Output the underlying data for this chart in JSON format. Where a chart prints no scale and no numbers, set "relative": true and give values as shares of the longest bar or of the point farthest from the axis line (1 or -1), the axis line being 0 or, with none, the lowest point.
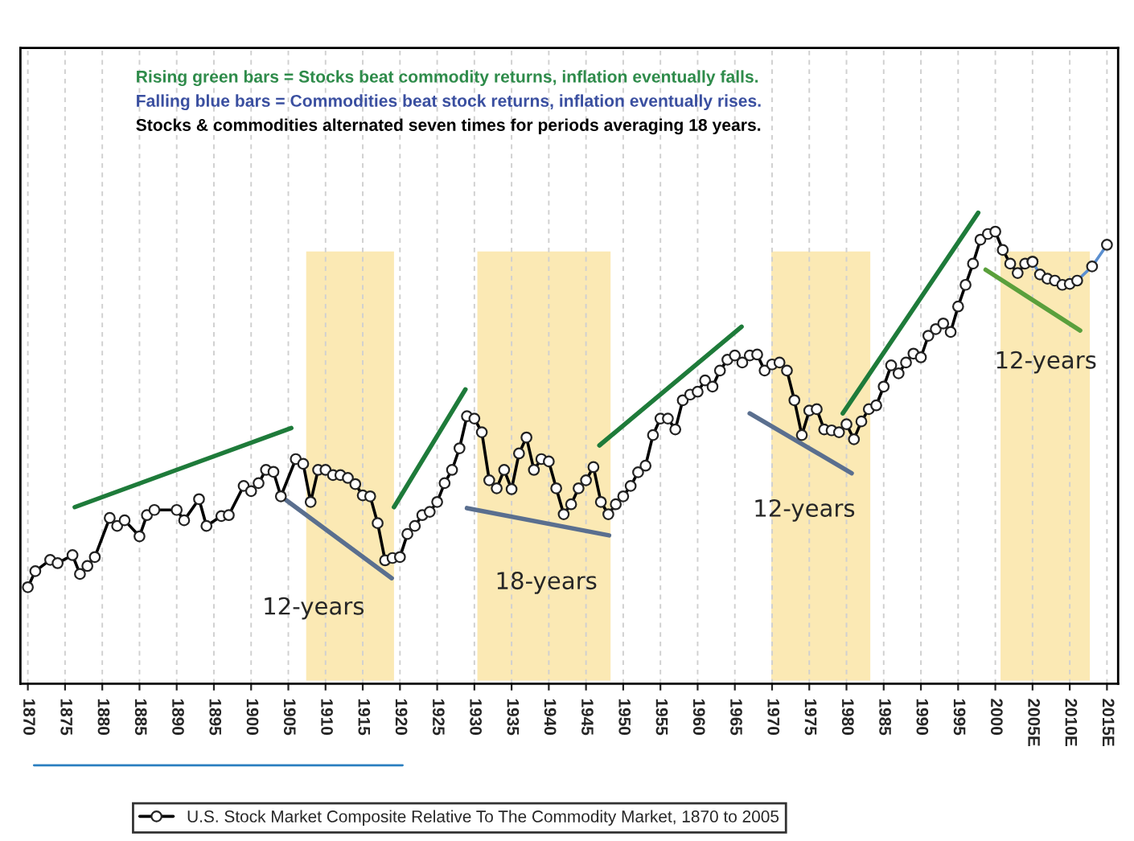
{
  "chart_data": {
    "type": "line",
    "relative": true,
    "annotations": [
      "Rising green bars = Stocks beat commodity returns, inflation eventually falls.",
      "Falling blue bars = Commodities beat stock returns, inflation eventually rises.",
      "Stocks & commodities alternated seven times for periods averaging 18 years.",
      "12-years",
      "18-years",
      "12-years",
      "12-years"
    ],
    "xlim": [
      1869,
      2016.5
    ],
    "xticks": [
      1870,
      1875,
      1880,
      1885,
      1890,
      1895,
      1900,
      1905,
      1910,
      1915,
      1920,
      1925,
      1930,
      1935,
      1940,
      1945,
      1950,
      1955,
      1960,
      1965,
      1970,
      1975,
      1980,
      1985,
      1990,
      1995,
      2000,
      {
        "value": 2005,
        "label": "2005E"
      },
      {
        "value": 2010,
        "label": "2010E"
      },
      {
        "value": 2015,
        "label": "2015E"
      }
    ],
    "grid": "x",
    "legend": "bottom",
    "marker": "circle",
    "line_style": "solid",
    "bands": [
      {
        "axis": "x",
        "from": 1907.4,
        "to": 1919.2,
        "color": "#fbe9b4"
      },
      {
        "axis": "x",
        "from": 1930.4,
        "to": 1948.3,
        "color": "#fbe9b4"
      },
      {
        "axis": "x",
        "from": 1969.9,
        "to": 1983.2,
        "color": "#fbe9b4"
      },
      {
        "axis": "x",
        "from": 2000.7,
        "to": 2012.7,
        "color": "#fbe9b4"
      }
    ],
    "series": [
      {
        "name": "U.S. Stock Market Composite Relative To The Commodity Market, 1870 to 2005",
        "color": "#000000",
        "x": [
          1870,
          1871,
          1873,
          1874,
          1876,
          1877,
          1878,
          1879,
          1881,
          1882,
          1883,
          1885,
          1886,
          1887,
          1890,
          1891,
          1893,
          1894,
          1896,
          1897,
          1899,
          1900,
          1901,
          1902,
          1903,
          1904,
          1906,
          1907,
          1908,
          1909,
          1910,
          1911,
          1912,
          1913,
          1914,
          1915,
          1916,
          1917,
          1918,
          1919,
          1920,
          1921,
          1922,
          1923,
          1924,
          1925,
          1926,
          1927,
          1928,
          1929,
          1930,
          1931,
          1932,
          1933,
          1934,
          1935,
          1936,
          1937,
          1938,
          1939,
          1940,
          1941,
          1942,
          1943,
          1944,
          1945,
          1946,
          1947,
          1948,
          1949,
          1950,
          1951,
          1952,
          1953,
          1954,
          1955,
          1956,
          1957,
          1958,
          1959,
          1960,
          1961,
          1962,
          1963,
          1964,
          1965,
          1966,
          1967,
          1968,
          1969,
          1970,
          1971,
          1972,
          1973,
          1974,
          1975,
          1976,
          1977,
          1978,
          1979,
          1980,
          1981,
          1982,
          1983,
          1984,
          1985,
          1986,
          1987,
          1988,
          1989,
          1990,
          1991,
          1992,
          1993,
          1994,
          1995,
          1996,
          1997,
          1998,
          1999,
          2000,
          2001,
          2002,
          2003,
          2004,
          2005
        ],
        "values": [
          0.205,
          0.239,
          0.263,
          0.256,
          0.273,
          0.233,
          0.25,
          0.269,
          0.352,
          0.335,
          0.347,
          0.313,
          0.358,
          0.369,
          0.369,
          0.347,
          0.392,
          0.335,
          0.356,
          0.358,
          0.42,
          0.409,
          0.426,
          0.454,
          0.45,
          0.398,
          0.477,
          0.467,
          0.386,
          0.454,
          0.454,
          0.443,
          0.443,
          0.437,
          0.424,
          0.4,
          0.398,
          0.341,
          0.262,
          0.267,
          0.269,
          0.318,
          0.335,
          0.358,
          0.365,
          0.386,
          0.426,
          0.454,
          0.5,
          0.568,
          0.563,
          0.534,
          0.432,
          0.415,
          0.454,
          0.413,
          0.489,
          0.523,
          0.454,
          0.477,
          0.472,
          0.415,
          0.36,
          0.381,
          0.415,
          0.432,
          0.46,
          0.386,
          0.36,
          0.381,
          0.398,
          0.42,
          0.449,
          0.463,
          0.528,
          0.563,
          0.563,
          0.54,
          0.602,
          0.614,
          0.62,
          0.644,
          0.631,
          0.665,
          0.688,
          0.697,
          0.682,
          0.697,
          0.699,
          0.665,
          0.678,
          0.682,
          0.665,
          0.602,
          0.528,
          0.58,
          0.583,
          0.54,
          0.538,
          0.534,
          0.551,
          0.519,
          0.557,
          0.583,
          0.591,
          0.631,
          0.676,
          0.659,
          0.682,
          0.701,
          0.693,
          0.739,
          0.753,
          0.765,
          0.747,
          0.801,
          0.847,
          0.892,
          0.943,
          0.955,
          0.96,
          0.921,
          0.892,
          0.872,
          0.892,
          0.896
        ]
      },
      {
        "color": "#5b8fd0",
        "x": [
          2005,
          2006,
          2007,
          2008,
          2009,
          2010,
          2011,
          2013,
          2015
        ],
        "values": [
          0.896,
          0.869,
          0.86,
          0.856,
          0.847,
          0.849,
          0.856,
          0.886,
          0.932
        ]
      },
      {
        "color": "#1e7b3a",
        "marker": "none",
        "x": [
          1876.3,
          1905.4
        ],
        "values": [
          0.375,
          0.543
        ]
      },
      {
        "color": "#5a6f8f",
        "marker": "none",
        "x": [
          1904.7,
          1918.9
        ],
        "values": [
          0.39,
          0.224
        ]
      },
      {
        "color": "#1e7b3a",
        "marker": "none",
        "x": [
          1919.2,
          1928.8
        ],
        "values": [
          0.375,
          0.625
        ]
      },
      {
        "color": "#5a6f8f",
        "marker": "none",
        "x": [
          1929,
          1948.1
        ],
        "values": [
          0.373,
          0.315
        ]
      },
      {
        "color": "#1e7b3a",
        "marker": "none",
        "x": [
          1946.8,
          1965.9
        ],
        "values": [
          0.506,
          0.758
        ]
      },
      {
        "color": "#5a6f8f",
        "marker": "none",
        "x": [
          1967,
          1980.7
        ],
        "values": [
          0.574,
          0.447
        ]
      },
      {
        "color": "#1e7b3a",
        "marker": "none",
        "x": [
          1979.5,
          1997.7
        ],
        "values": [
          0.574,
          1.0
        ]
      },
      {
        "color": "#5aa03c",
        "marker": "none",
        "x": [
          1998.7,
          2011.4
        ],
        "values": [
          0.879,
          0.75
        ]
      }
    ]
  }
}
